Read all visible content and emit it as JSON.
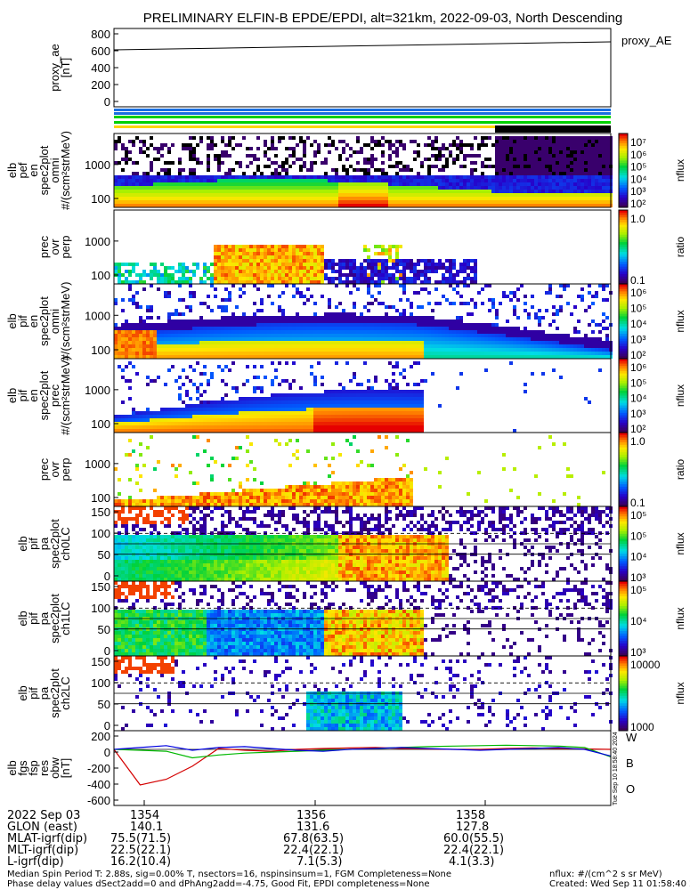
{
  "title": "PRELIMINARY ELFIN-B EPDE/EPDI, alt=321km, 2022-09-03, North Descending",
  "panels": [
    {
      "id": "proxy-ae",
      "ylabels": [
        "proxy_ae",
        "[nT]"
      ],
      "ticks": [
        "800",
        "600",
        "400",
        "200",
        "0"
      ],
      "legend": "proxy_AE"
    },
    {
      "id": "e-omni",
      "ylabels": [
        "elb",
        "pef",
        "en",
        "spec2plot",
        "omni",
        "#/(scm²strMeV)"
      ],
      "ticks": [
        "1000",
        "100"
      ],
      "cb_ticks": [
        "10⁷",
        "10⁶",
        "10⁵",
        "10⁴",
        "10³",
        "10²"
      ],
      "cb_label": "nflux"
    },
    {
      "id": "e-ratio",
      "ylabels": [
        "prec",
        "ovr",
        "perp"
      ],
      "ticks": [
        "1000",
        "100"
      ],
      "cb_ticks": [
        "1.0",
        "0.1"
      ],
      "cb_label": "ratio"
    },
    {
      "id": "i-omni",
      "ylabels": [
        "elb",
        "pif",
        "en",
        "spec2plot",
        "omni",
        "#/(scm²strMeV)"
      ],
      "ticks": [
        "1000",
        "100"
      ],
      "cb_ticks": [
        "10⁶",
        "10⁵",
        "10⁴",
        "10³",
        "10²"
      ],
      "cb_label": "nflux"
    },
    {
      "id": "i-prec",
      "ylabels": [
        "elb",
        "pif",
        "en",
        "spec2plot",
        "prec",
        "#/(scm²strMeV)"
      ],
      "ticks": [
        "1000",
        "100"
      ],
      "cb_ticks": [
        "10⁶",
        "10⁵",
        "10⁴",
        "10³",
        "10²"
      ],
      "cb_label": "nflux"
    },
    {
      "id": "i-ratio",
      "ylabels": [
        "prec",
        "ovr",
        "perp"
      ],
      "ticks": [
        "1000",
        "100"
      ],
      "cb_ticks": [
        "1.0",
        "0.1"
      ],
      "cb_label": "ratio"
    },
    {
      "id": "pa-ch0",
      "ylabels": [
        "elb",
        "pif",
        "pa",
        "spec2plot",
        "ch0LC"
      ],
      "ticks": [
        "150",
        "100",
        "50",
        "0"
      ],
      "cb_ticks": [
        "10⁵",
        "10⁵",
        "10⁴",
        "10³"
      ],
      "cb_label": "nflux"
    },
    {
      "id": "pa-ch1",
      "ylabels": [
        "elb",
        "pif",
        "pa",
        "spec2plot",
        "ch1LC"
      ],
      "ticks": [
        "150",
        "100",
        "50",
        "0"
      ],
      "cb_ticks": [
        "10⁵",
        "10⁴",
        "10³"
      ],
      "cb_label": "nflux"
    },
    {
      "id": "pa-ch2",
      "ylabels": [
        "elb",
        "pif",
        "pa",
        "spec2plot",
        "ch2LC"
      ],
      "ticks": [
        "150",
        "100",
        "50",
        "0"
      ],
      "cb_ticks": [
        "10000",
        "1000"
      ],
      "cb_label": "nflux"
    },
    {
      "id": "fgs",
      "ylabels": [
        "elb",
        "fgs",
        "fsp",
        "res",
        "obw",
        "[nT]"
      ],
      "ticks": [
        "200",
        "0",
        "-200",
        "-400",
        "-600"
      ],
      "legend_items": [
        "W",
        "B",
        "O"
      ]
    }
  ],
  "ephemeris": {
    "rows": [
      [
        "2022 Sep 03",
        "1354",
        "1356",
        "1358"
      ],
      [
        "GLON (east)",
        "140.1",
        "131.6",
        "127.8"
      ],
      [
        "MLAT-igrf(dip)",
        "75.5(71.5)",
        "67.8(63.5)",
        "60.0(55.5)"
      ],
      [
        "MLT-igrf(dip)",
        "22.5(22.1)",
        "22.4(22.1)",
        "22.4(22.1)"
      ],
      [
        "L-igrf(dip)",
        "16.2(10.4)",
        "7.1(5.3)",
        "4.1(3.3)"
      ]
    ]
  },
  "footer": {
    "line1": "Median Spin Period T: 2.88s, sig=0.00% T, nsectors=16, nspinsinsum=1, FGM Completeness=None",
    "line2": "Phase delay values dSect2add=0 and dPhAng2add=-4.75, Good Fit, EPDI completeness=None",
    "units": "nflux: #/(cm^2 s sr MeV)",
    "created": "Created: Wed Sep 11 01:58:40 2024",
    "side_stamp": "Tue Sep 10 18:58:40 2024"
  },
  "chart_data": {
    "type": "heatmap",
    "title": "PRELIMINARY ELFIN-B EPDE/EPDI, alt=321km, 2022-09-03, North Descending",
    "xlabel": "",
    "ylabel": "",
    "x_range": [
      "13:53",
      "13:59"
    ],
    "proxy_ae": {
      "y_range": [
        0,
        800
      ],
      "x": [
        "13:53",
        "13:59"
      ],
      "values": [
        600,
        690
      ]
    },
    "fgs_components": {
      "y_range": [
        -600,
        200
      ],
      "series": [
        {
          "name": "W",
          "color": "#d40000",
          "values": [
            0,
            -380,
            -320,
            -180,
            10,
            -10,
            -20,
            0,
            10,
            15,
            20,
            10,
            5,
            0,
            0,
            10,
            15,
            10,
            5,
            0
          ]
        },
        {
          "name": "B",
          "color": "#00b800",
          "values": [
            0,
            -10,
            -20,
            -90,
            -60,
            -40,
            -30,
            -20,
            -10,
            0,
            10,
            20,
            30,
            35,
            40,
            45,
            40,
            35,
            20,
            -80
          ]
        },
        {
          "name": "O",
          "color": "#0000e0",
          "values": [
            0,
            20,
            40,
            -10,
            20,
            30,
            10,
            -10,
            -20,
            0,
            10,
            20,
            10,
            0,
            -10,
            0,
            10,
            20,
            0,
            -70
          ]
        }
      ]
    },
    "heatmap_panels": [
      "e-omni",
      "e-ratio",
      "i-omni",
      "i-prec",
      "i-ratio",
      "pa-ch0",
      "pa-ch1",
      "pa-ch2"
    ]
  }
}
